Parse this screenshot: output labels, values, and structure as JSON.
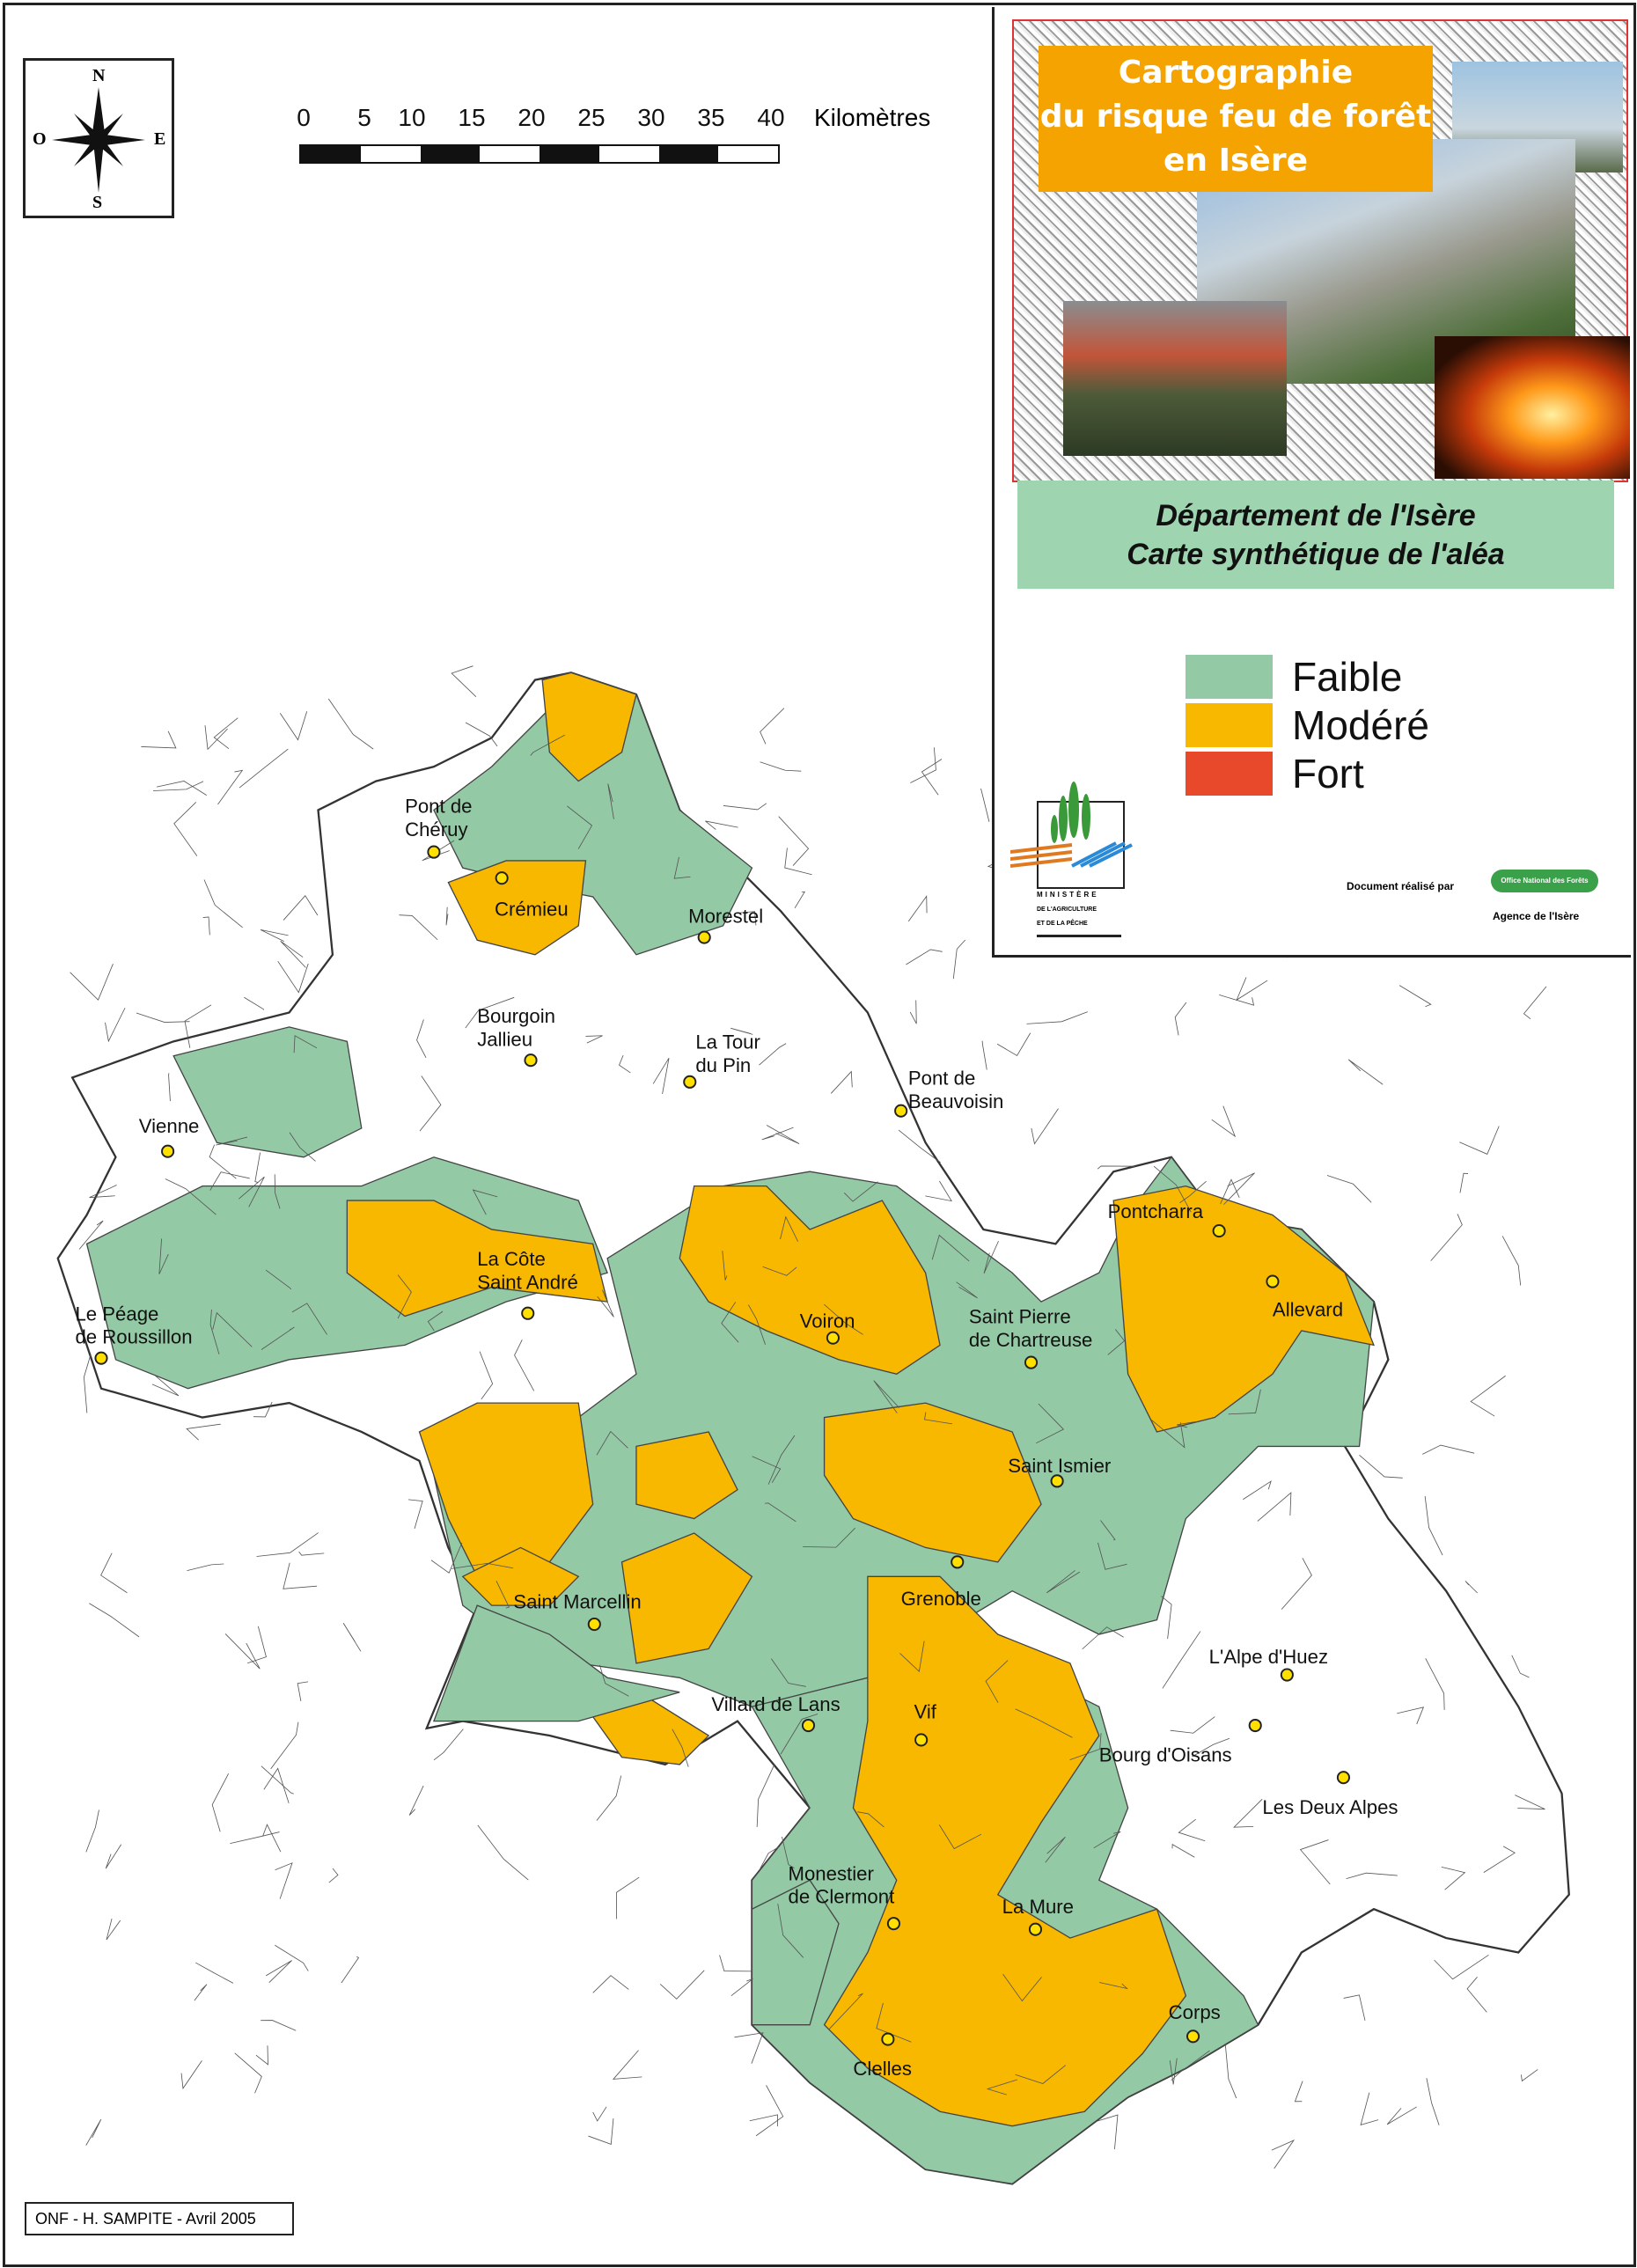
{
  "header": {
    "title_lines": [
      "Cartographie",
      "du risque feu de forêt",
      "en Isère"
    ],
    "subtitle_lines": [
      "Département de l'Isère",
      "Carte synthétique de l'aléa"
    ]
  },
  "compass": {
    "north": "N",
    "south": "S",
    "east": "E",
    "west": "O"
  },
  "scale": {
    "ticks": [
      "0",
      "5",
      "10",
      "15",
      "20",
      "25",
      "30",
      "35",
      "40"
    ],
    "unit": "Kilomètres"
  },
  "legend": [
    {
      "label": "Faible",
      "color": "#93c9a4"
    },
    {
      "label": "Modéré",
      "color": "#f9b800"
    },
    {
      "label": "Fort",
      "color": "#e8492a"
    }
  ],
  "logos": {
    "ministry_lines": [
      "MINISTÈRE",
      "DE L'AGRICULTURE",
      "ET DE LA PÊCHE"
    ],
    "made_by": "Document réalisé par",
    "onf_logo_text": "Office National des Forêts",
    "agency": "Agence de l'Isère"
  },
  "credit": "ONF - H. SAMPITE - Avril 2005",
  "cities": [
    {
      "name": "Pont de Chéruy",
      "lines": [
        "Pont de",
        "Chéruy"
      ],
      "dot": [
        300,
        589
      ],
      "lab": [
        280,
        562
      ]
    },
    {
      "name": "Crémieu",
      "lines": [
        "Crémieu"
      ],
      "dot": [
        347,
        607
      ],
      "lab": [
        342,
        633
      ]
    },
    {
      "name": "Morestel",
      "lines": [
        "Morestel"
      ],
      "dot": [
        487,
        648
      ],
      "lab": [
        476,
        638
      ]
    },
    {
      "name": "Bourgoin Jallieu",
      "lines": [
        "Bourgoin",
        "Jallieu"
      ],
      "dot": [
        367,
        733
      ],
      "lab": [
        330,
        707
      ]
    },
    {
      "name": "La Tour du Pin",
      "lines": [
        "La Tour",
        "du Pin"
      ],
      "dot": [
        477,
        748
      ],
      "lab": [
        481,
        725
      ]
    },
    {
      "name": "Pont de Beauvoisin",
      "lines": [
        "Pont de",
        "Beauvoisin"
      ],
      "dot": [
        623,
        768
      ],
      "lab": [
        628,
        750
      ]
    },
    {
      "name": "Vienne",
      "lines": [
        "Vienne"
      ],
      "dot": [
        116,
        796
      ],
      "lab": [
        96,
        783
      ]
    },
    {
      "name": "La Côte Saint André",
      "lines": [
        "La Côte",
        "Saint André"
      ],
      "dot": [
        365,
        908
      ],
      "lab": [
        330,
        875
      ]
    },
    {
      "name": "Le Péage de Roussillon",
      "lines": [
        "Le Péage",
        "de Roussillon"
      ],
      "dot": [
        70,
        939
      ],
      "lab": [
        52,
        913
      ]
    },
    {
      "name": "Voiron",
      "lines": [
        "Voiron"
      ],
      "dot": [
        576,
        925
      ],
      "lab": [
        553,
        918
      ]
    },
    {
      "name": "Saint Pierre de Chartreuse",
      "lines": [
        "Saint Pierre",
        "de Chartreuse"
      ],
      "dot": [
        713,
        942
      ],
      "lab": [
        670,
        915
      ]
    },
    {
      "name": "Pontcharra",
      "lines": [
        "Pontcharra"
      ],
      "dot": [
        843,
        851
      ],
      "lab": [
        766,
        842
      ]
    },
    {
      "name": "Allevard",
      "lines": [
        "Allevard"
      ],
      "dot": [
        880,
        886
      ],
      "lab": [
        880,
        910
      ]
    },
    {
      "name": "Saint Ismier",
      "lines": [
        "Saint Ismier"
      ],
      "dot": [
        731,
        1024
      ],
      "lab": [
        697,
        1018
      ]
    },
    {
      "name": "Grenoble",
      "lines": [
        "Grenoble"
      ],
      "dot": [
        662,
        1080
      ],
      "lab": [
        623,
        1110
      ]
    },
    {
      "name": "Saint Marcellin",
      "lines": [
        "Saint Marcellin"
      ],
      "dot": [
        411,
        1123
      ],
      "lab": [
        355,
        1112
      ]
    },
    {
      "name": "L'Alpe d'Huez",
      "lines": [
        "L'Alpe d'Huez"
      ],
      "dot": [
        890,
        1158
      ],
      "lab": [
        836,
        1150
      ]
    },
    {
      "name": "Villard de Lans",
      "lines": [
        "Villard de Lans"
      ],
      "dot": [
        559,
        1193
      ],
      "lab": [
        492,
        1183
      ]
    },
    {
      "name": "Vif",
      "lines": [
        "Vif"
      ],
      "dot": [
        637,
        1203
      ],
      "lab": [
        632,
        1188
      ]
    },
    {
      "name": "Bourg d'Oisans",
      "lines": [
        "Bourg d'Oisans"
      ],
      "dot": [
        868,
        1193
      ],
      "lab": [
        760,
        1218
      ]
    },
    {
      "name": "Les Deux Alpes",
      "lines": [
        "Les Deux Alpes"
      ],
      "dot": [
        929,
        1229
      ],
      "lab": [
        873,
        1254
      ]
    },
    {
      "name": "Monestier de Clermont",
      "lines": [
        "Monestier",
        "de Clermont"
      ],
      "dot": [
        618,
        1330
      ],
      "lab": [
        545,
        1300
      ]
    },
    {
      "name": "La Mure",
      "lines": [
        "La Mure"
      ],
      "dot": [
        716,
        1334
      ],
      "lab": [
        693,
        1323
      ]
    },
    {
      "name": "Corps",
      "lines": [
        "Corps"
      ],
      "dot": [
        825,
        1408
      ],
      "lab": [
        808,
        1396
      ]
    },
    {
      "name": "Clelles",
      "lines": [
        "Clelles"
      ],
      "dot": [
        614,
        1410
      ],
      "lab": [
        590,
        1435
      ]
    }
  ]
}
